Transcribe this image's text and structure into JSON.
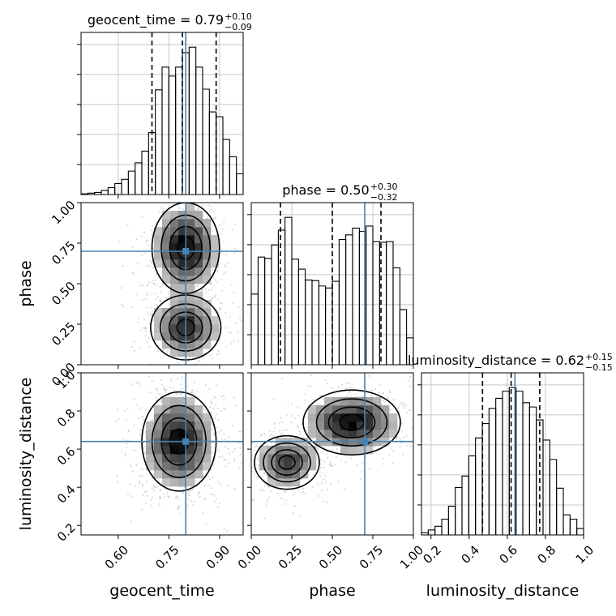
{
  "chart_data": {
    "type": "corner",
    "title": "",
    "parameters": [
      "geocent_time",
      "phase",
      "luminosity_distance"
    ],
    "axes": {
      "geocent_time": {
        "label": "geocent_time",
        "range": [
          0.49,
          0.97
        ],
        "ticks": [
          0.6,
          0.75,
          0.9
        ],
        "tick_labels": [
          "0.60",
          "0.75",
          "0.90"
        ],
        "truth": 0.8,
        "quantiles": [
          0.7,
          0.79,
          0.89
        ]
      },
      "phase": {
        "label": "phase",
        "range": [
          0.0,
          1.0
        ],
        "ticks": [
          0.0,
          0.25,
          0.5,
          0.75,
          1.0
        ],
        "tick_labels": [
          "0.00",
          "0.25",
          "0.50",
          "0.75",
          "1.00"
        ],
        "truth": 0.7,
        "quantiles": [
          0.18,
          0.5,
          0.8
        ]
      },
      "luminosity_distance": {
        "label": "luminosity_distance",
        "range": [
          0.15,
          1.0
        ],
        "ticks": [
          0.2,
          0.4,
          0.6,
          0.8,
          1.0
        ],
        "tick_labels": [
          "0.2",
          "0.4",
          "0.6",
          "0.8",
          "1.0"
        ],
        "truth": 0.64,
        "quantiles": [
          0.47,
          0.62,
          0.77
        ]
      }
    },
    "titles": [
      {
        "param": "geocent_time",
        "text": "geocent_time = 0.79",
        "sup": "+0.10",
        "sub": "−0.09"
      },
      {
        "param": "phase",
        "text": "phase = 0.50",
        "sup": "+0.30",
        "sub": "−0.32"
      },
      {
        "param": "luminosity_distance",
        "text": "luminosity_distance = 0.62",
        "sup": "+0.15",
        "sub": "−0.15"
      }
    ],
    "histograms": {
      "geocent_time": {
        "edges": [
          0.49,
          0.51,
          0.53,
          0.55,
          0.57,
          0.59,
          0.61,
          0.63,
          0.65,
          0.67,
          0.69,
          0.71,
          0.73,
          0.75,
          0.77,
          0.79,
          0.81,
          0.83,
          0.85,
          0.87,
          0.89,
          0.91,
          0.93,
          0.95,
          0.97
        ],
        "counts": [
          1,
          2,
          3,
          6,
          10,
          16,
          22,
          34,
          46,
          63,
          90,
          152,
          185,
          172,
          185,
          206,
          214,
          185,
          153,
          120,
          113,
          80,
          55,
          30
        ]
      },
      "phase": {
        "edges": [
          0.0,
          0.042,
          0.083,
          0.125,
          0.167,
          0.208,
          0.25,
          0.292,
          0.333,
          0.375,
          0.417,
          0.458,
          0.5,
          0.542,
          0.583,
          0.625,
          0.667,
          0.708,
          0.75,
          0.792,
          0.833,
          0.875,
          0.917,
          0.958,
          1.0
        ],
        "counts": [
          105,
          160,
          158,
          178,
          200,
          219,
          157,
          142,
          126,
          125,
          117,
          114,
          124,
          186,
          193,
          203,
          198,
          206,
          183,
          182,
          183,
          144,
          82,
          40
        ]
      },
      "luminosity_distance": {
        "edges": [
          0.15,
          0.1854,
          0.2208,
          0.2563,
          0.2917,
          0.3271,
          0.3625,
          0.3979,
          0.4333,
          0.4688,
          0.5042,
          0.5396,
          0.575,
          0.6104,
          0.6458,
          0.6813,
          0.7167,
          0.7521,
          0.7875,
          0.8229,
          0.8583,
          0.8938,
          0.9292,
          0.9646,
          1.0
        ],
        "counts": [
          3,
          7,
          12,
          22,
          40,
          66,
          82,
          110,
          135,
          155,
          176,
          190,
          200,
          205,
          200,
          184,
          178,
          160,
          132,
          105,
          65,
          28,
          22,
          9
        ]
      }
    },
    "pairs": [
      {
        "x": "geocent_time",
        "y": "phase",
        "modes": [
          {
            "cx": 0.8,
            "cy": 0.72,
            "sx": 0.05,
            "sy": 0.14,
            "w": 0.55
          },
          {
            "cx": 0.8,
            "cy": 0.23,
            "sx": 0.052,
            "sy": 0.1,
            "w": 0.45
          }
        ]
      },
      {
        "x": "geocent_time",
        "y": "luminosity_distance",
        "modes": [
          {
            "cx": 0.78,
            "cy": 0.64,
            "sx": 0.055,
            "sy": 0.13,
            "w": 1.0
          }
        ]
      },
      {
        "x": "phase",
        "y": "luminosity_distance",
        "modes": [
          {
            "cx": 0.22,
            "cy": 0.53,
            "sx": 0.1,
            "sy": 0.07,
            "w": 0.45
          },
          {
            "cx": 0.62,
            "cy": 0.74,
            "sx": 0.15,
            "sy": 0.085,
            "w": 0.55
          }
        ]
      }
    ],
    "colors": {
      "truth": "#4682b4",
      "hist": "#000000",
      "quantile": "#000000",
      "grid": "#c8c8c8"
    },
    "grid": true
  }
}
